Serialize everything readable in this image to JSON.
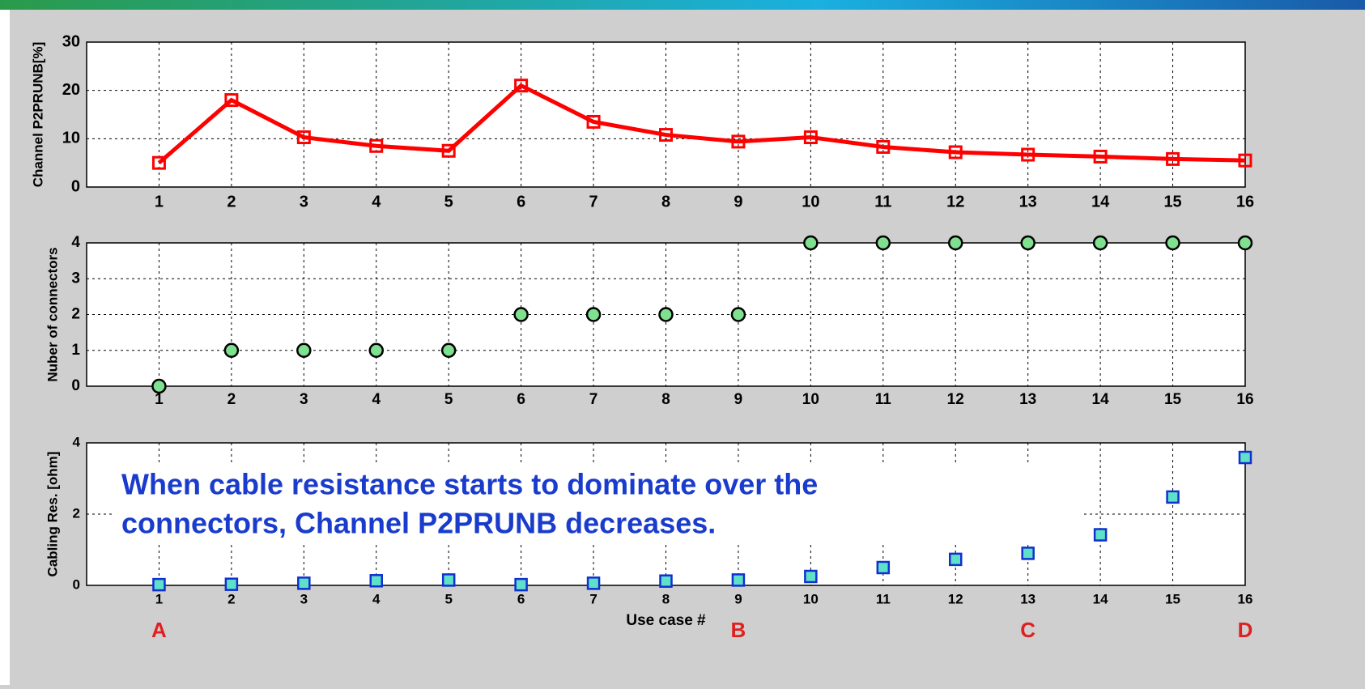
{
  "chart_data": [
    {
      "type": "line",
      "ylabel": "Channel P2PRUNB[%]",
      "color": "#ff0000",
      "marker": "square",
      "edgecolor": "#ff0000",
      "markerfill": "none",
      "x": [
        1,
        2,
        3,
        4,
        5,
        6,
        7,
        8,
        9,
        10,
        11,
        12,
        13,
        14,
        15,
        16
      ],
      "values": [
        5,
        18,
        10.3,
        8.5,
        7.5,
        21,
        13.5,
        10.8,
        9.4,
        10.3,
        8.3,
        7.2,
        6.7,
        6.3,
        5.8,
        5.5
      ],
      "xlim": [
        0,
        16
      ],
      "xticks": [
        1,
        2,
        3,
        4,
        5,
        6,
        7,
        8,
        9,
        10,
        11,
        12,
        13,
        14,
        15,
        16
      ],
      "ylim": [
        0,
        30
      ],
      "yticks": [
        0,
        10,
        20,
        30
      ],
      "grid": true
    },
    {
      "type": "scatter",
      "ylabel": "Nuber of connectors",
      "marker": "circle",
      "color": "#7fe08f",
      "edgecolor": "#000000",
      "x": [
        1,
        2,
        3,
        4,
        5,
        6,
        7,
        8,
        9,
        10,
        11,
        12,
        13,
        14,
        15,
        16
      ],
      "values": [
        0,
        1,
        1,
        1,
        1,
        2,
        2,
        2,
        2,
        4,
        4,
        4,
        4,
        4,
        4,
        4
      ],
      "xlim": [
        0,
        16
      ],
      "xticks": [
        1,
        2,
        3,
        4,
        5,
        6,
        7,
        8,
        9,
        10,
        11,
        12,
        13,
        14,
        15,
        16
      ],
      "ylim": [
        0,
        4
      ],
      "yticks": [
        0,
        1,
        2,
        3,
        4
      ],
      "grid": true
    },
    {
      "type": "scatter",
      "ylabel": "Cabling Res. [ohm]",
      "xlabel": "Use case #",
      "marker": "square",
      "color": "#5fe0c8",
      "edgecolor": "#1030d0",
      "x": [
        1,
        2,
        3,
        4,
        5,
        6,
        7,
        8,
        9,
        10,
        11,
        12,
        13,
        14,
        15,
        16
      ],
      "values": [
        0.02,
        0.03,
        0.06,
        0.13,
        0.15,
        0.02,
        0.06,
        0.12,
        0.15,
        0.25,
        0.5,
        0.73,
        0.9,
        1.42,
        2.48,
        3.59
      ],
      "xlim": [
        0,
        16
      ],
      "xticks": [
        1,
        2,
        3,
        4,
        5,
        6,
        7,
        8,
        9,
        10,
        11,
        12,
        13,
        14,
        15,
        16
      ],
      "ylim": [
        0,
        4
      ],
      "yticks": [
        0,
        2,
        4
      ],
      "grid": true,
      "annotation": [
        "When cable resistance starts to dominate over the",
        "connectors, Channel P2PRUNB decreases."
      ],
      "markers": [
        {
          "x": 1,
          "label": "A"
        },
        {
          "x": 9,
          "label": "B"
        },
        {
          "x": 13,
          "label": "C"
        },
        {
          "x": 16,
          "label": "D"
        }
      ]
    }
  ]
}
